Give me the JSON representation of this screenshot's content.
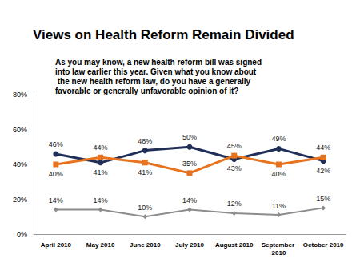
{
  "chart_data": {
    "type": "line",
    "title": "Views on Health Reform Remain Divided",
    "subtitle": "As you may know, a new health reform bill was signed into law earlier this year. Given what you know about the new health reform law, do you have a generally favorable or generally unfavorable opinion of it?",
    "categories": [
      "April 2010",
      "May 2010",
      "June 2010",
      "July 2010",
      "August 2010",
      "September 2010",
      "October 2010"
    ],
    "series": [
      {
        "color": "#1f2f57",
        "marker": "circle",
        "values": [
          46,
          41,
          48,
          50,
          43,
          49,
          42
        ],
        "value_labels": [
          "46%",
          "41%",
          "48%",
          "50%",
          "43%",
          "49%",
          "42%"
        ]
      },
      {
        "color": "#e8731f",
        "marker": "square",
        "values": [
          40,
          44,
          41,
          35,
          45,
          40,
          44
        ],
        "value_labels": [
          "40%",
          "44%",
          "41%",
          "35%",
          "45%",
          "40%",
          "44%"
        ]
      },
      {
        "color": "#8c8c8c",
        "marker": "diamond",
        "values": [
          14,
          14,
          10,
          14,
          12,
          11,
          15
        ],
        "value_labels": [
          "14%",
          "14%",
          "10%",
          "14%",
          "12%",
          "11%",
          "15%"
        ]
      }
    ],
    "ylim": [
      0,
      80
    ],
    "yticks": [
      {
        "value": 0,
        "label": "0%"
      },
      {
        "value": 20,
        "label": "20%"
      },
      {
        "value": 40,
        "label": "40%"
      },
      {
        "value": 60,
        "label": "60%"
      },
      {
        "value": 80,
        "label": "80%"
      }
    ],
    "grid": false,
    "data_labels": true
  }
}
